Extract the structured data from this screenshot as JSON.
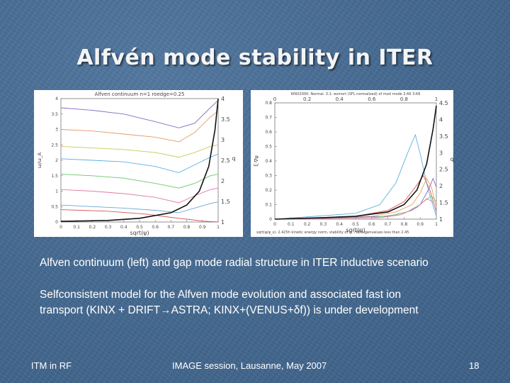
{
  "slide": {
    "title": "Alfvén mode stability in ITER",
    "caption": "Alfven continuum (left) and gap mode radial structure in ITER inductive scenario",
    "para_line1": "Selfconsistent model for the Alfven mode evolution and associated fast ion",
    "para_line2_a": "transport (KINX + DRIFT",
    "para_line2_arrow1": "→",
    "para_line2_b": "ASTRA;  KINX+(VENUS+",
    "para_line2_delta": "δ",
    "para_line2_c": "f)) is under development"
  },
  "footer": {
    "left": "ITM in RF",
    "center": "IMAGE session, Lausanne, May 2007",
    "page": "18"
  },
  "chart_data": [
    {
      "type": "line",
      "title": "Alfven continuum n=1 roedge=0.25",
      "xlabel": "sqrt(ψ)",
      "ylabel": "ω/ω_A",
      "xlim": [
        0,
        1
      ],
      "ylim": [
        0,
        4
      ],
      "x_ticks": [
        "0",
        "0.1",
        "0.2",
        "0.3",
        "0.4",
        "0.5",
        "0.6",
        "0.7",
        "0.8",
        "0.9",
        "1"
      ],
      "y_ticks": [
        "0",
        "0.5",
        "1",
        "1.5",
        "2",
        "2.5",
        "3",
        "3.5",
        "4"
      ],
      "y2label": "q",
      "y2lim": [
        1,
        4
      ],
      "y2_ticks": [
        "1",
        "1.5",
        "2",
        "2.5",
        "3",
        "3.5",
        "4"
      ],
      "grid": false,
      "series": [
        {
          "color": "#8a6bbf",
          "x": [
            0,
            0.2,
            0.4,
            0.6,
            0.75,
            0.85,
            0.95,
            1
          ],
          "y": [
            3.7,
            3.62,
            3.5,
            3.25,
            3.05,
            3.2,
            3.7,
            3.95
          ]
        },
        {
          "color": "#e39a6a",
          "x": [
            0,
            0.2,
            0.4,
            0.6,
            0.75,
            0.85,
            0.95,
            1
          ],
          "y": [
            3.0,
            2.95,
            2.85,
            2.75,
            2.6,
            2.9,
            3.4,
            3.6
          ]
        },
        {
          "color": "#c7c95a",
          "x": [
            0,
            0.2,
            0.4,
            0.6,
            0.75,
            0.85,
            0.95,
            1
          ],
          "y": [
            2.45,
            2.4,
            2.35,
            2.25,
            2.1,
            2.25,
            2.45,
            2.5
          ]
        },
        {
          "color": "#5ab0e0",
          "x": [
            0,
            0.2,
            0.4,
            0.6,
            0.75,
            0.85,
            0.95,
            1
          ],
          "y": [
            2.05,
            2.0,
            1.95,
            1.8,
            1.6,
            1.85,
            2.1,
            2.2
          ]
        },
        {
          "color": "#6cc66c",
          "x": [
            0,
            0.2,
            0.4,
            0.6,
            0.75,
            0.85,
            0.95,
            1
          ],
          "y": [
            1.55,
            1.5,
            1.42,
            1.25,
            1.1,
            1.25,
            1.5,
            1.55
          ]
        },
        {
          "color": "#e37aa8",
          "x": [
            0,
            0.2,
            0.4,
            0.6,
            0.75,
            0.85,
            0.95,
            1
          ],
          "y": [
            1.05,
            1.0,
            0.92,
            0.8,
            0.62,
            0.85,
            1.05,
            1.1
          ]
        },
        {
          "color": "#6aa8d8",
          "x": [
            0,
            0.2,
            0.4,
            0.6,
            0.75,
            0.85,
            0.95,
            1
          ],
          "y": [
            0.55,
            0.5,
            0.45,
            0.38,
            0.3,
            0.45,
            0.6,
            0.65
          ]
        },
        {
          "color": "#d45757",
          "x": [
            0,
            0.3,
            0.55,
            0.7,
            0.82,
            0.9,
            1
          ],
          "y": [
            0.4,
            0.35,
            0.25,
            0.15,
            0.08,
            0.03,
            0.0
          ]
        },
        {
          "color": "#111111",
          "name": "q",
          "x": [
            0,
            0.3,
            0.5,
            0.7,
            0.8,
            0.88,
            0.94,
            0.98,
            1
          ],
          "y": [
            0.02,
            0.05,
            0.12,
            0.3,
            0.55,
            1.0,
            1.8,
            3.0,
            4.0
          ]
        }
      ]
    },
    {
      "type": "line",
      "title": "KINX2000: Normal. 3:1: eomort (SFL normalized) of mod mode 2:66 3:66",
      "xlabel": "sqrt(ψ)",
      "ylabel": "ξ·∇ψ",
      "xlim": [
        0,
        1
      ],
      "ylim": [
        0,
        0.8
      ],
      "x_ticks": [
        "0",
        "0.1",
        "0.2",
        "0.3",
        "0.4",
        "0.5",
        "0.6",
        "0.7",
        "0.8",
        "0.9",
        "1"
      ],
      "x_top_ticks": [
        "0",
        "0.2",
        "0.4",
        "0.6",
        "0.8",
        "1"
      ],
      "y_ticks": [
        "0",
        "0.1",
        "0.2",
        "0.3",
        "0.4",
        "0.5",
        "0.6",
        "0.7",
        "0.8"
      ],
      "y2label": "q",
      "y2lim": [
        1,
        4.5
      ],
      "y2_ticks": [
        "1",
        "1.5",
        "2",
        "2.5",
        "3",
        "3.5",
        "4",
        "4.5"
      ],
      "footnote": "sqrt(ψ/ψ_s): 2.425h kinetic energy norm, stability of ψ, 768 eigenvalues less than 2.45",
      "grid": false,
      "series": [
        {
          "color": "#5ab0e0",
          "x": [
            0,
            0.5,
            0.65,
            0.75,
            0.82,
            0.87,
            0.9,
            0.95,
            1
          ],
          "y": [
            0.0,
            0.04,
            0.1,
            0.25,
            0.45,
            0.58,
            0.45,
            0.2,
            0.02
          ]
        },
        {
          "color": "#d45757",
          "x": [
            0,
            0.5,
            0.7,
            0.8,
            0.87,
            0.92,
            0.96,
            1
          ],
          "y": [
            0.0,
            0.02,
            0.06,
            0.12,
            0.22,
            0.3,
            0.2,
            0.05
          ]
        },
        {
          "color": "#e3a35a",
          "x": [
            0,
            0.6,
            0.75,
            0.85,
            0.9,
            0.94,
            0.97,
            1
          ],
          "y": [
            0.0,
            0.02,
            0.05,
            0.1,
            0.18,
            0.28,
            0.22,
            0.08
          ]
        },
        {
          "color": "#8a6bbf",
          "x": [
            0,
            0.7,
            0.82,
            0.9,
            0.95,
            0.98,
            1
          ],
          "y": [
            0.0,
            0.02,
            0.05,
            0.1,
            0.2,
            0.28,
            0.22
          ]
        },
        {
          "color": "#6cc66c",
          "x": [
            0,
            0.6,
            0.75,
            0.85,
            0.92,
            0.97,
            1
          ],
          "y": [
            0.0,
            0.01,
            0.03,
            0.06,
            0.12,
            0.16,
            0.12
          ]
        },
        {
          "color": "#e37aa8",
          "x": [
            0,
            0.65,
            0.78,
            0.88,
            0.94,
            0.98,
            1
          ],
          "y": [
            0.0,
            0.01,
            0.03,
            0.08,
            0.14,
            0.12,
            0.06
          ]
        },
        {
          "color": "#111111",
          "name": "q",
          "x": [
            0,
            0.3,
            0.5,
            0.7,
            0.8,
            0.88,
            0.94,
            0.98,
            1
          ],
          "y": [
            0.0,
            0.01,
            0.02,
            0.05,
            0.1,
            0.2,
            0.38,
            0.62,
            0.78
          ]
        }
      ]
    }
  ]
}
